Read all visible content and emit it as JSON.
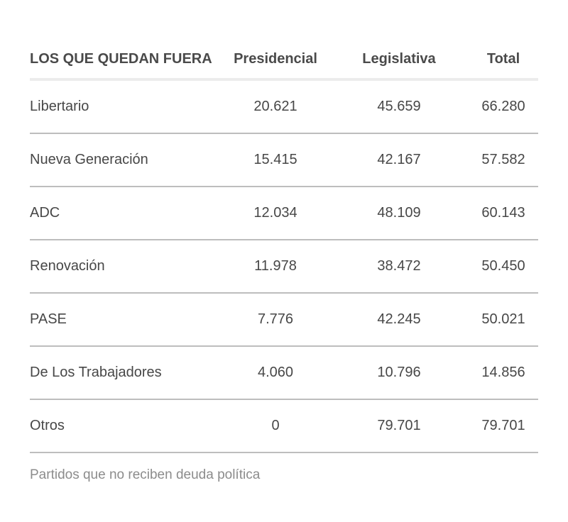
{
  "chart_data": {
    "type": "table",
    "columns": [
      "LOS QUE QUEDAN FUERA",
      "Presidencial",
      "Legislativa",
      "Total"
    ],
    "rows": [
      [
        "Libertario",
        "20.621",
        "45.659",
        "66.280"
      ],
      [
        "Nueva Generación",
        "15.415",
        "42.167",
        "57.582"
      ],
      [
        "ADC",
        "12.034",
        "48.109",
        "60.143"
      ],
      [
        "Renovación",
        "11.978",
        "38.472",
        "50.450"
      ],
      [
        "PASE",
        "7.776",
        "42.245",
        "50.021"
      ],
      [
        "De Los Trabajadores",
        "4.060",
        "10.796",
        "14.856"
      ],
      [
        "Otros",
        "0",
        "79.701",
        "79.701"
      ]
    ],
    "footnote": "Partidos que no reciben deuda política"
  }
}
